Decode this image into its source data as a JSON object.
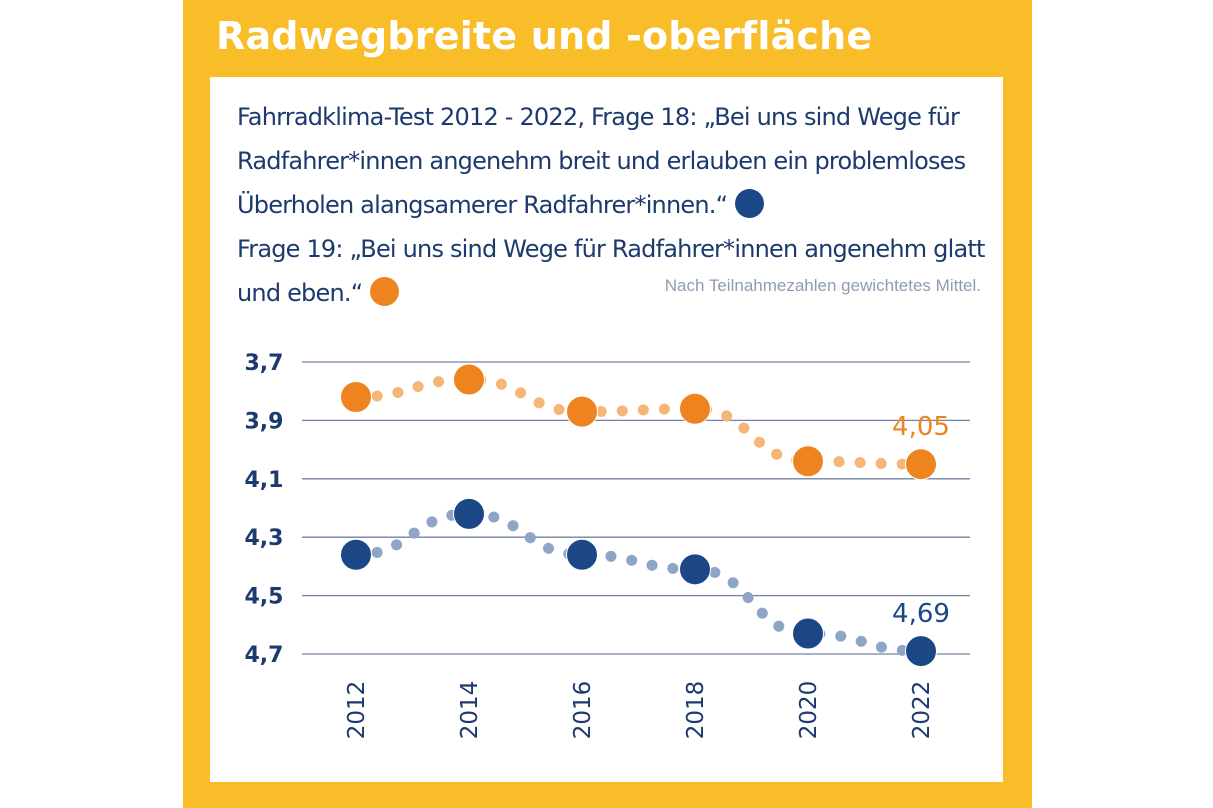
{
  "header": {
    "title": "Radwegbreite und -oberfläche"
  },
  "description": {
    "line1": "Fahrradklima-Test 2012 - 2022, Frage 18: „Bei uns sind Wege für Radfahrer*innen angenehm breit und erlauben ein problemloses Überholen alangsamerer Radfahrer*innen.“",
    "line2": "Frage 19: „Bei uns sind Wege für Radfahrer*innen angenehm glatt und eben.“",
    "note": "Nach Teilnahmezahlen gewichtetes Mittel.",
    "colors": {
      "frage18": "#1c4787",
      "frage19": "#ee8420"
    }
  },
  "chart_data": {
    "type": "line",
    "x": [
      "2012",
      "2014",
      "2016",
      "2018",
      "2020",
      "2022"
    ],
    "y_axis": {
      "range": [
        3.7,
        4.7
      ],
      "inverted": true,
      "ticks": [
        "3,7",
        "3,9",
        "4,1",
        "4,3",
        "4,5",
        "4,7"
      ]
    },
    "grid": true,
    "series": [
      {
        "id": "frage19",
        "color": "#ee8420",
        "values": [
          3.82,
          3.76,
          3.87,
          3.86,
          4.04,
          4.05
        ],
        "end_label": "4,05"
      },
      {
        "id": "frage18",
        "color": "#1c4787",
        "values": [
          4.36,
          4.22,
          4.36,
          4.41,
          4.63,
          4.69
        ],
        "end_label": "4,69"
      }
    ]
  }
}
